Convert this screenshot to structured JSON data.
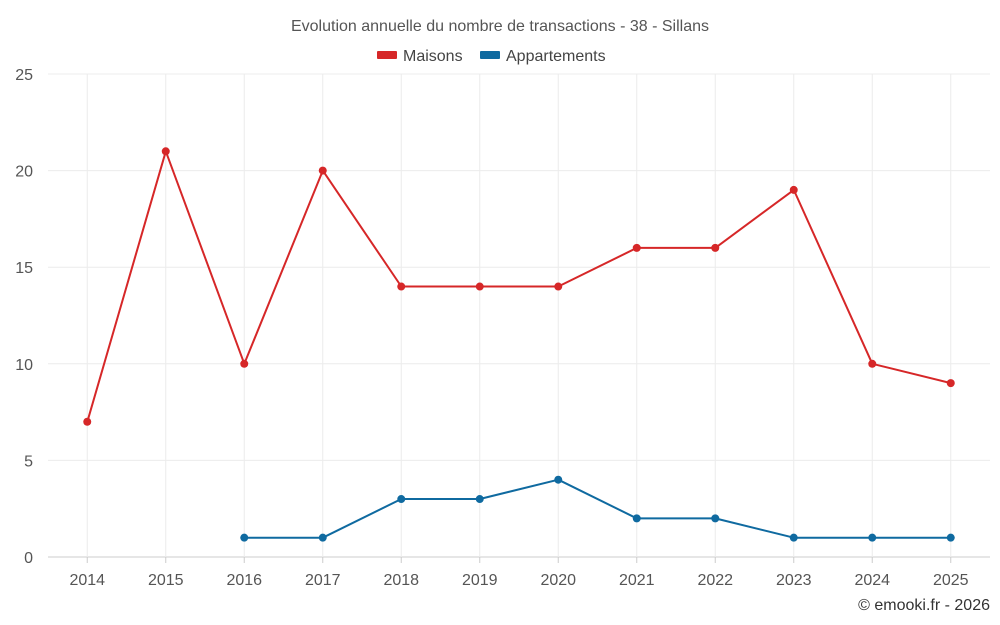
{
  "chart_data": {
    "type": "line",
    "title": "Evolution annuelle du nombre de transactions - 38 - Sillans",
    "categories": [
      "2014",
      "2015",
      "2016",
      "2017",
      "2018",
      "2019",
      "2020",
      "2021",
      "2022",
      "2023",
      "2024",
      "2025"
    ],
    "ylim": [
      0,
      25
    ],
    "yticks": [
      0,
      5,
      10,
      15,
      20,
      25
    ],
    "grid": true,
    "legend_position": "top-center",
    "series": [
      {
        "name": "Maisons",
        "color": "#d62728",
        "values": [
          7,
          21,
          10,
          20,
          14,
          14,
          14,
          16,
          16,
          19,
          10,
          9
        ]
      },
      {
        "name": "Appartements",
        "color": "#0f6aa0",
        "values": [
          null,
          null,
          1,
          1,
          3,
          3,
          4,
          2,
          2,
          1,
          1,
          1
        ]
      }
    ]
  },
  "credit": "© emooki.fr - 2026"
}
